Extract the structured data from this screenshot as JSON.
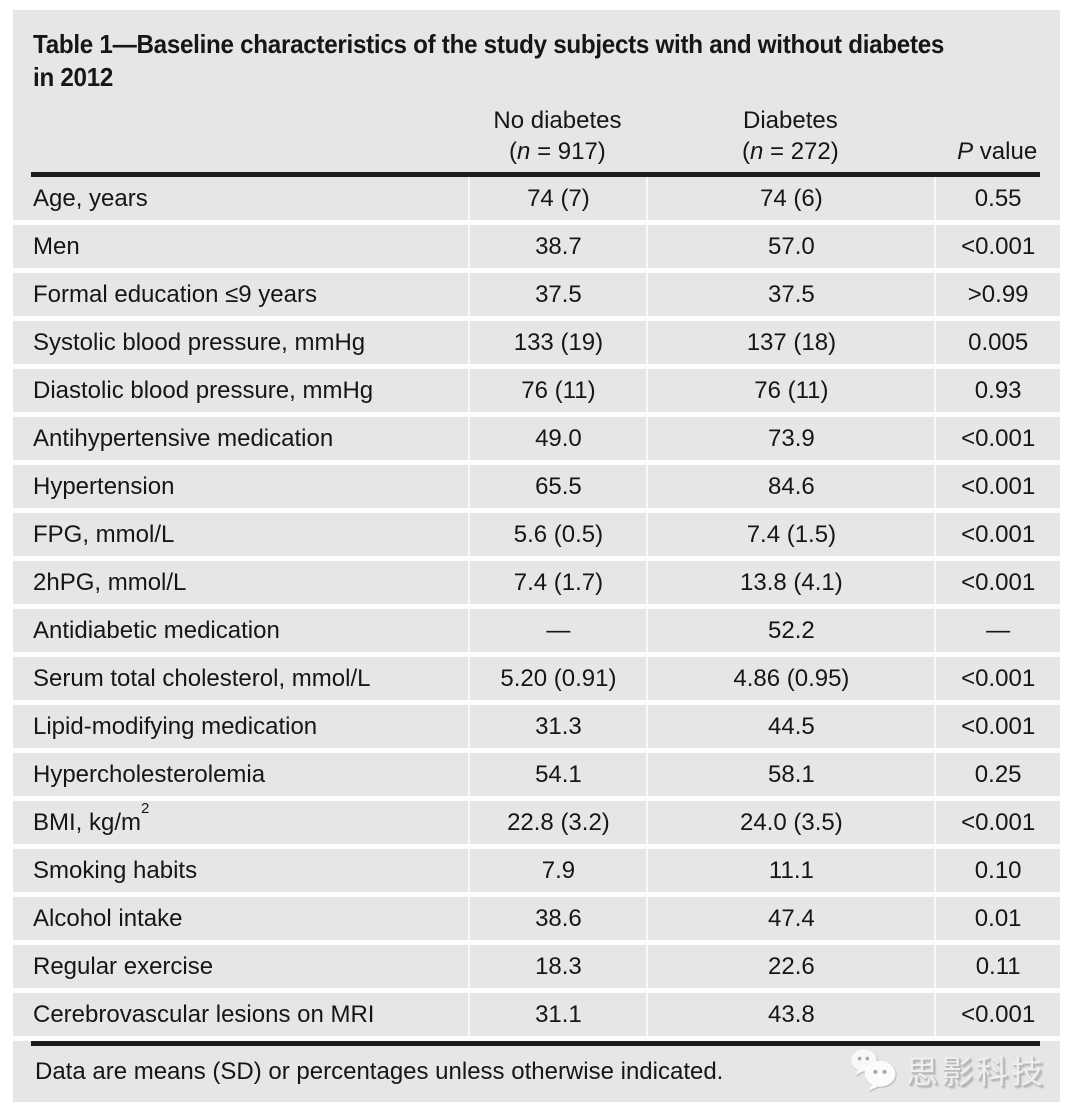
{
  "document": {
    "title_line1": "Table 1—Baseline characteristics of the study subjects with and without diabetes",
    "title_line2": "in 2012"
  },
  "table": {
    "columns": {
      "group1": {
        "name": "No diabetes",
        "n_pre": "(",
        "n_italic": "n",
        "n_post": " = 917)"
      },
      "group2": {
        "name": "Diabetes",
        "n_pre": "(",
        "n_italic": "n",
        "n_post": " = 272)"
      },
      "p": {
        "italic": "P",
        "rest": " value"
      }
    },
    "rows": [
      {
        "label": "Age, years",
        "no_diabetes": "74 (7)",
        "diabetes": "74 (6)",
        "p_value": "0.55"
      },
      {
        "label": "Men",
        "no_diabetes": "38.7",
        "diabetes": "57.0",
        "p_value": "<0.001"
      },
      {
        "label": "Formal education ≤9 years",
        "no_diabetes": "37.5",
        "diabetes": "37.5",
        "p_value": ">0.99"
      },
      {
        "label": "Systolic blood pressure, mmHg",
        "no_diabetes": "133 (19)",
        "diabetes": "137 (18)",
        "p_value": "0.005"
      },
      {
        "label": "Diastolic blood pressure, mmHg",
        "no_diabetes": "76 (11)",
        "diabetes": "76 (11)",
        "p_value": "0.93"
      },
      {
        "label": "Antihypertensive medication",
        "no_diabetes": "49.0",
        "diabetes": "73.9",
        "p_value": "<0.001"
      },
      {
        "label": "Hypertension",
        "no_diabetes": "65.5",
        "diabetes": "84.6",
        "p_value": "<0.001"
      },
      {
        "label": "FPG, mmol/L",
        "no_diabetes": "5.6 (0.5)",
        "diabetes": "7.4 (1.5)",
        "p_value": "<0.001"
      },
      {
        "label": "2hPG, mmol/L",
        "no_diabetes": "7.4 (1.7)",
        "diabetes": "13.8 (4.1)",
        "p_value": "<0.001"
      },
      {
        "label": "Antidiabetic medication",
        "no_diabetes": "—",
        "diabetes": "52.2",
        "p_value": "—"
      },
      {
        "label": "Serum total cholesterol, mmol/L",
        "no_diabetes": "5.20 (0.91)",
        "diabetes": "4.86 (0.95)",
        "p_value": "<0.001"
      },
      {
        "label": "Lipid-modifying medication",
        "no_diabetes": "31.3",
        "diabetes": "44.5",
        "p_value": "<0.001"
      },
      {
        "label": "Hypercholesterolemia",
        "no_diabetes": "54.1",
        "diabetes": "58.1",
        "p_value": "0.25"
      },
      {
        "label": "BMI, kg/m²",
        "no_diabetes": "22.8 (3.2)",
        "diabetes": "24.0 (3.5)",
        "p_value": "<0.001"
      },
      {
        "label": "Smoking habits",
        "no_diabetes": "7.9",
        "diabetes": "11.1",
        "p_value": "0.10"
      },
      {
        "label": "Alcohol intake",
        "no_diabetes": "38.6",
        "diabetes": "47.4",
        "p_value": "0.01"
      },
      {
        "label": "Regular exercise",
        "no_diabetes": "18.3",
        "diabetes": "22.6",
        "p_value": "0.11"
      },
      {
        "label": "Cerebrovascular lesions on MRI",
        "no_diabetes": "31.1",
        "diabetes": "43.8",
        "p_value": "<0.001"
      }
    ]
  },
  "footnote": "Data are means (SD) or percentages unless otherwise indicated.",
  "watermark": {
    "text": "思影科技",
    "icon": "wechat-chat-bubbles-icon"
  },
  "colors": {
    "page_background": "#ffffff",
    "table_background": "#e6e6e8",
    "row_separator": "#fcfcfc",
    "rule": "#1c1c1c",
    "text": "#161616",
    "watermark_text": "#efeff0"
  }
}
